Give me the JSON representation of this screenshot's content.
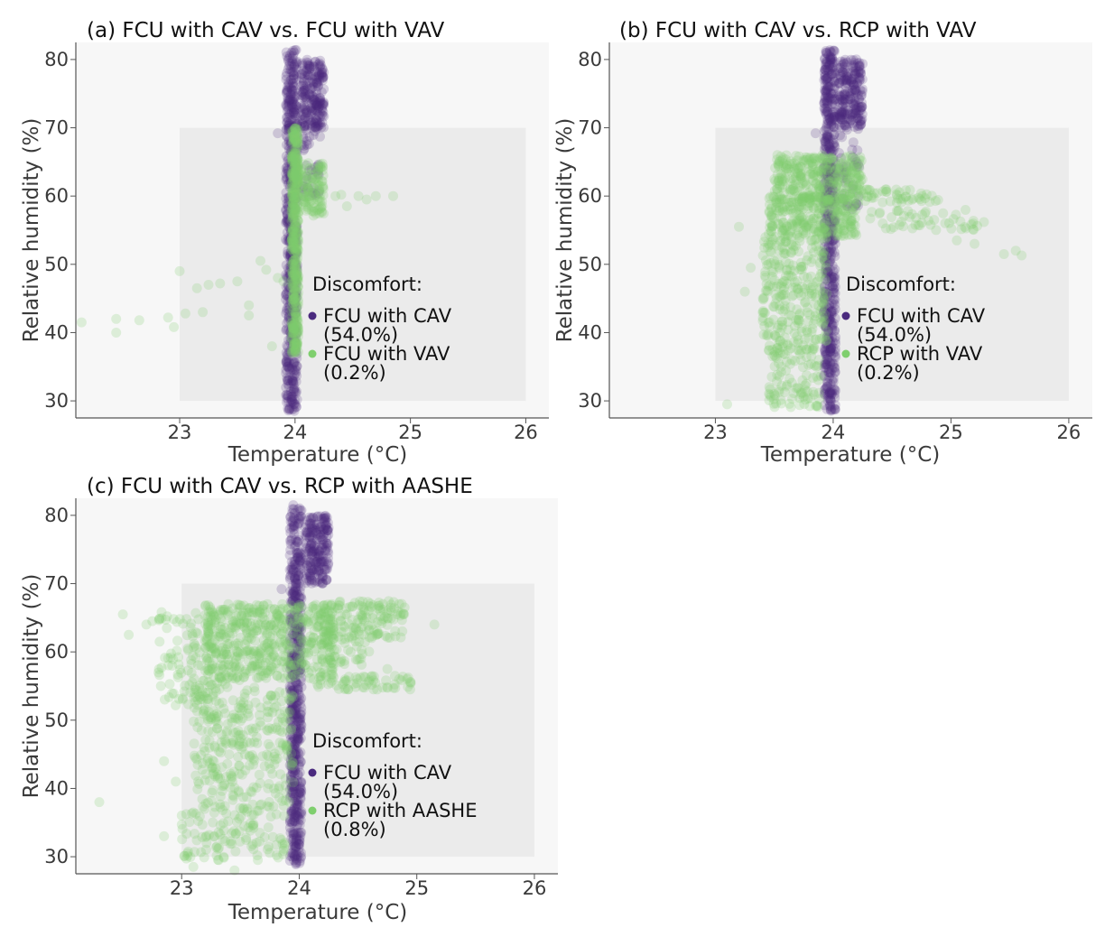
{
  "colors": {
    "cav": "#4a2a7e",
    "comparison": "#7fcf6e",
    "panel_bg": "#f7f7f7",
    "comfort_zone": "#ebebeb",
    "axis": "#555555"
  },
  "chart_data": [
    {
      "type": "scatter",
      "title": "(a) FCU with CAV vs. FCU with VAV",
      "xlabel": "Temperature (°C)",
      "ylabel": "Relative humidity (%)",
      "xlim": [
        22.1,
        26.2
      ],
      "ylim": [
        27.5,
        82.5
      ],
      "xticks": [
        "23",
        "24",
        "25",
        "26"
      ],
      "yticks": [
        "30",
        "40",
        "50",
        "60",
        "70",
        "80"
      ],
      "comfort_zone": {
        "x": [
          23,
          26
        ],
        "y": [
          30,
          70
        ]
      },
      "grid": false,
      "legend": {
        "placement": "center-right",
        "title": "Discomfort:",
        "entries": [
          {
            "name": "FCU with CAV",
            "pct": "(54.0%)",
            "color": "#4a2a7e"
          },
          {
            "name": "FCU with VAV",
            "pct": "(0.2%)",
            "color": "#7fcf6e"
          }
        ]
      },
      "series": [
        {
          "name": "FCU with CAV",
          "clusters": [
            {
              "x": [
                23.92,
                24.02
              ],
              "y": [
                28.5,
                81.5
              ],
              "n": 560
            },
            {
              "x": [
                24.05,
                24.25
              ],
              "y": [
                70,
                80
              ],
              "n": 200
            },
            {
              "x": [
                24.05,
                24.22
              ],
              "y": [
                60,
                70
              ],
              "n": 40
            }
          ],
          "x": [
            23.85,
            24.1,
            24.15
          ],
          "y": [
            69.2,
            64.5,
            60.5
          ]
        },
        {
          "name": "FCU with VAV",
          "clusters": [
            {
              "x": [
                23.97,
                24.03
              ],
              "y": [
                37,
                70
              ],
              "n": 420
            },
            {
              "x": [
                24.0,
                24.25
              ],
              "y": [
                57,
                65
              ],
              "n": 120
            }
          ],
          "x": [
            22.15,
            22.45,
            22.45,
            22.65,
            22.9,
            22.95,
            23.0,
            23.05,
            23.15,
            23.2,
            23.25,
            23.35,
            23.5,
            23.6,
            23.7,
            23.75,
            23.8,
            23.85,
            23.6,
            23.9,
            24.35,
            24.45,
            24.55,
            24.62,
            24.7,
            24.85,
            24.4
          ],
          "y": [
            41.5,
            40.0,
            42.0,
            41.8,
            42.2,
            40.8,
            49.0,
            42.8,
            46.5,
            43.0,
            47.0,
            47.2,
            47.5,
            42.5,
            50.5,
            49.2,
            38.0,
            48.0,
            44.0,
            47.5,
            60.0,
            58.5,
            60.0,
            59.5,
            60.0,
            60.0,
            60.2
          ]
        }
      ]
    },
    {
      "type": "scatter",
      "title": "(b) FCU with CAV vs. RCP with VAV",
      "xlabel": "Temperature (°C)",
      "ylabel": "Relative humidity (%)",
      "xlim": [
        22.1,
        26.2
      ],
      "ylim": [
        27.5,
        82.5
      ],
      "xticks": [
        "23",
        "24",
        "25",
        "26"
      ],
      "yticks": [
        "30",
        "40",
        "50",
        "60",
        "70",
        "80"
      ],
      "comfort_zone": {
        "x": [
          23,
          26
        ],
        "y": [
          30,
          70
        ]
      },
      "grid": false,
      "legend": {
        "placement": "center-right",
        "title": "Discomfort:",
        "entries": [
          {
            "name": "FCU with CAV",
            "pct": "(54.0%)",
            "color": "#4a2a7e"
          },
          {
            "name": "RCP with VAV",
            "pct": "(0.2%)",
            "color": "#7fcf6e"
          }
        ]
      },
      "series": [
        {
          "name": "FCU with CAV",
          "clusters": [
            {
              "x": [
                23.92,
                24.02
              ],
              "y": [
                28.5,
                81.5
              ],
              "n": 560
            },
            {
              "x": [
                24.05,
                24.25
              ],
              "y": [
                70,
                80
              ],
              "n": 200
            },
            {
              "x": [
                24.05,
                24.22
              ],
              "y": [
                58,
                70
              ],
              "n": 40
            }
          ],
          "x": [
            23.85
          ],
          "y": [
            69.2
          ]
        },
        {
          "name": "RCP with VAV",
          "clusters": [
            {
              "x": [
                23.5,
                24.25
              ],
              "y": [
                59,
                66
              ],
              "n": 320
            },
            {
              "x": [
                23.45,
                24.2
              ],
              "y": [
                54,
                60
              ],
              "n": 260
            },
            {
              "x": [
                23.4,
                23.95
              ],
              "y": [
                38,
                54
              ],
              "n": 260
            },
            {
              "x": [
                23.45,
                23.9
              ],
              "y": [
                29,
                38
              ],
              "n": 110
            },
            {
              "x": [
                24.2,
                24.9
              ],
              "y": [
                59,
                61
              ],
              "n": 50
            },
            {
              "x": [
                24.3,
                25.3
              ],
              "y": [
                55,
                58
              ],
              "n": 50
            }
          ],
          "x": [
            23.1,
            23.25,
            23.2,
            23.3,
            25.45,
            25.55,
            25.6,
            25.05,
            25.2
          ],
          "y": [
            29.5,
            46.0,
            55.5,
            49.5,
            51.5,
            52.0,
            51.3,
            53.5,
            53.0
          ]
        }
      ]
    },
    {
      "type": "scatter",
      "title": "(c) FCU with CAV vs. RCP with AASHE",
      "xlabel": "Temperature (°C)",
      "ylabel": "Relative humidity (%)",
      "xlim": [
        22.1,
        26.2
      ],
      "ylim": [
        27.5,
        82.5
      ],
      "xticks": [
        "23",
        "24",
        "25",
        "26"
      ],
      "yticks": [
        "30",
        "40",
        "50",
        "60",
        "70",
        "80"
      ],
      "comfort_zone": {
        "x": [
          23,
          26
        ],
        "y": [
          30,
          70
        ]
      },
      "grid": false,
      "legend": {
        "placement": "center-right",
        "title": "Discomfort:",
        "entries": [
          {
            "name": "FCU with CAV",
            "pct": "(54.0%)",
            "color": "#4a2a7e"
          },
          {
            "name": "RCP with AASHE",
            "pct": "(0.8%)",
            "color": "#7fcf6e"
          }
        ]
      },
      "series": [
        {
          "name": "FCU with CAV",
          "clusters": [
            {
              "x": [
                23.92,
                24.02
              ],
              "y": [
                28.5,
                81.5
              ],
              "n": 560
            },
            {
              "x": [
                24.05,
                24.25
              ],
              "y": [
                70,
                80
              ],
              "n": 200
            }
          ],
          "x": [
            23.85
          ],
          "y": [
            69.2
          ]
        },
        {
          "name": "RCP with AASHE",
          "clusters": [
            {
              "x": [
                23.2,
                24.3
              ],
              "y": [
                56,
                67
              ],
              "n": 520
            },
            {
              "x": [
                24.2,
                24.9
              ],
              "y": [
                62,
                67.5
              ],
              "n": 150
            },
            {
              "x": [
                22.8,
                23.3
              ],
              "y": [
                52,
                66
              ],
              "n": 110
            },
            {
              "x": [
                23.1,
                23.95
              ],
              "y": [
                38,
                56
              ],
              "n": 300
            },
            {
              "x": [
                23.0,
                23.9
              ],
              "y": [
                29.5,
                38
              ],
              "n": 130
            },
            {
              "x": [
                24.15,
                24.95
              ],
              "y": [
                54.5,
                56.5
              ],
              "n": 60
            },
            {
              "x": [
                24.1,
                24.6
              ],
              "y": [
                58,
                62
              ],
              "n": 40
            }
          ],
          "x": [
            22.3,
            22.5,
            22.55,
            22.7,
            22.75,
            22.85,
            22.85,
            22.95,
            23.05,
            23.1,
            23.45,
            25.15,
            24.85,
            24.75
          ],
          "y": [
            38.0,
            65.5,
            62.5,
            64.0,
            64.5,
            44.0,
            33.0,
            41.0,
            30.5,
            28.5,
            28.0,
            64.0,
            67.0,
            57.5
          ]
        }
      ]
    }
  ]
}
